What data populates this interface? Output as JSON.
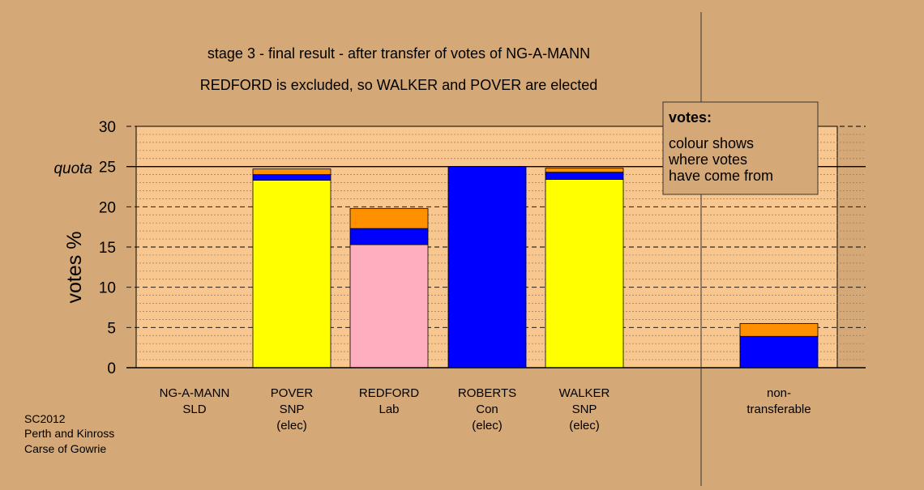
{
  "title_line1": "stage 3 - final result - after transfer of votes of NG-A-MANN",
  "title_line2": "REDFORD is excluded, so WALKER and POVER are elected",
  "ylabel": "votes %",
  "quota_label": "quota",
  "legend": {
    "heading": "votes:",
    "lines": [
      "colour shows",
      "where votes",
      "have come from"
    ]
  },
  "footer": [
    "SC2012",
    "Perth and Kinross",
    "Carse of Gowrie"
  ],
  "colors": {
    "background": "#d4a877",
    "plot_area": "#f8c78f",
    "SNP": "#ffff00",
    "Con": "#0000ff",
    "Lab": "#ffaec0",
    "SLD": "#ff9000"
  },
  "chart_data": {
    "type": "bar",
    "stacked": true,
    "ylim": [
      0,
      30
    ],
    "yticks": [
      0,
      5,
      10,
      15,
      20,
      25,
      30
    ],
    "quota": 25,
    "categories": [
      {
        "lines": [
          "NG-A-MANN",
          "SLD"
        ],
        "segments": []
      },
      {
        "lines": [
          "POVER",
          "SNP",
          "(elec)"
        ],
        "segments": [
          {
            "party": "SNP",
            "value": 23.3
          },
          {
            "party": "Con",
            "value": 0.7
          },
          {
            "party": "SLD",
            "value": 0.7
          }
        ]
      },
      {
        "lines": [
          "REDFORD",
          "Lab"
        ],
        "segments": [
          {
            "party": "Lab",
            "value": 15.3
          },
          {
            "party": "Con",
            "value": 2.0
          },
          {
            "party": "SLD",
            "value": 2.5
          }
        ]
      },
      {
        "lines": [
          "ROBERTS",
          "Con",
          "(elec)"
        ],
        "segments": [
          {
            "party": "Con",
            "value": 25.0
          }
        ]
      },
      {
        "lines": [
          "WALKER",
          "SNP",
          "(elec)"
        ],
        "segments": [
          {
            "party": "SNP",
            "value": 23.4
          },
          {
            "party": "Con",
            "value": 0.9
          },
          {
            "party": "SLD",
            "value": 0.5
          }
        ]
      },
      {
        "lines": [
          "non-",
          "transferable"
        ],
        "segments": [
          {
            "party": "Con",
            "value": 3.9
          },
          {
            "party": "SLD",
            "value": 1.6
          }
        ]
      }
    ]
  }
}
